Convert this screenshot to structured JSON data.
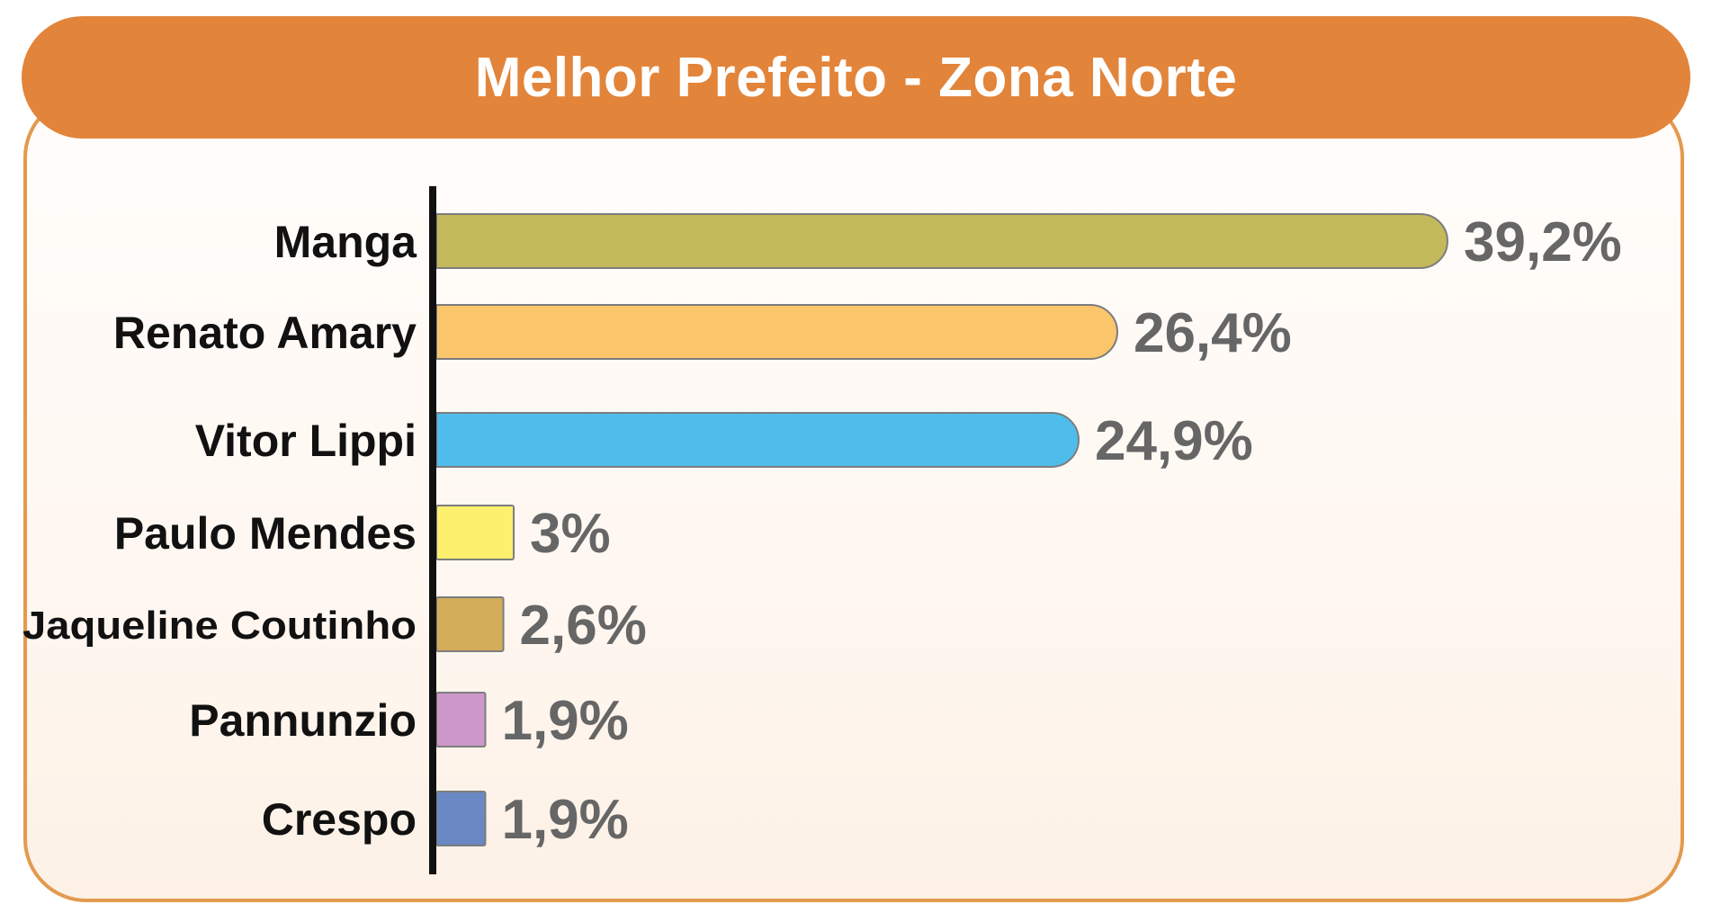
{
  "chart_data": {
    "type": "bar",
    "orientation": "horizontal",
    "title": "Melhor Prefeito - Zona Norte",
    "categories": [
      "Manga",
      "Renato Amary",
      "Vitor Lippi",
      "Paulo Mendes",
      "Jaqueline Coutinho",
      "Pannunzio",
      "Crespo"
    ],
    "values": [
      39.2,
      26.4,
      24.9,
      3,
      2.6,
      1.9,
      1.9
    ],
    "value_labels": [
      "39,2%",
      "26,4%",
      "24,9%",
      "3%",
      "2,6%",
      "1,9%",
      "1,9%"
    ],
    "unit": "%",
    "colors": [
      "#c2b95a",
      "#fbc56c",
      "#4fbdeb",
      "#fcf06e",
      "#d3ad5a",
      "#cd97c9",
      "#6a88c4"
    ],
    "xlabel": "",
    "ylabel": "",
    "grid": false,
    "legend": "none"
  },
  "theme": {
    "title_bar_color": "#e2843a",
    "panel_border_color": "#e39a4e",
    "value_label_color": "#666666",
    "category_label_color": "#111111"
  }
}
